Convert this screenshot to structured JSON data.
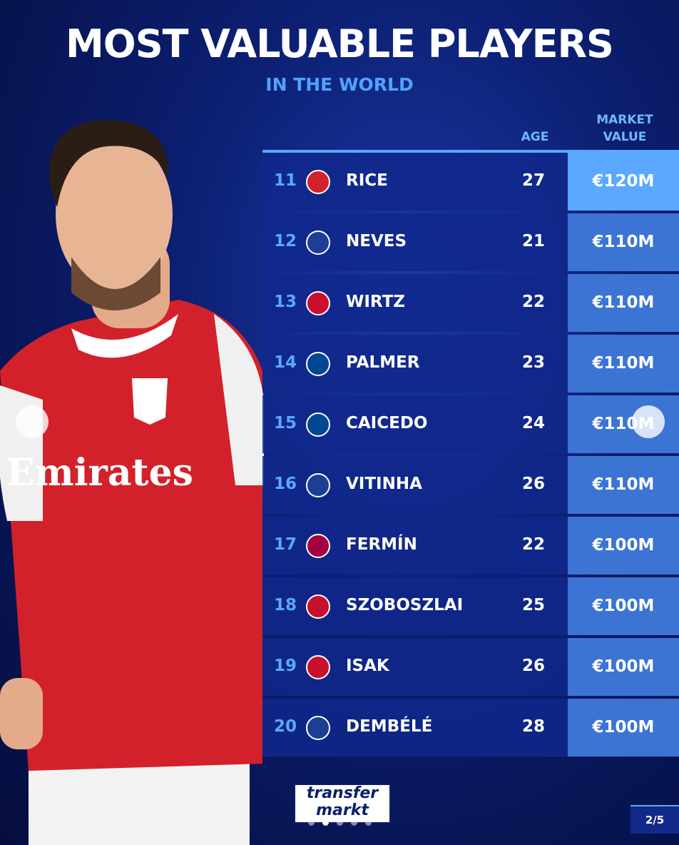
{
  "header": {
    "title": "MOST VALUABLE PLAYERS",
    "subtitle": "IN THE WORLD"
  },
  "table": {
    "columns": {
      "age": "AGE",
      "value": "MARKET VALUE"
    },
    "rows": [
      {
        "rank": 11,
        "name": "RICE",
        "age": 27,
        "value": "€120M"
      },
      {
        "rank": 12,
        "name": "NEVES",
        "age": 21,
        "value": "€110M"
      },
      {
        "rank": 13,
        "name": "WIRTZ",
        "age": 22,
        "value": "€110M"
      },
      {
        "rank": 14,
        "name": "PALMER",
        "age": 23,
        "value": "€110M"
      },
      {
        "rank": 15,
        "name": "CAICEDO",
        "age": 24,
        "value": "€110M"
      },
      {
        "rank": 16,
        "name": "VITINHA",
        "age": 26,
        "value": "€110M"
      },
      {
        "rank": 17,
        "name": "FERMÍN",
        "age": 22,
        "value": "€100M"
      },
      {
        "rank": 18,
        "name": "SZOBOSZLAI",
        "age": 25,
        "value": "€100M"
      },
      {
        "rank": 19,
        "name": "ISAK",
        "age": 26,
        "value": "€100M"
      },
      {
        "rank": 20,
        "name": "DEMBÉLÉ",
        "age": 28,
        "value": "€100M"
      }
    ]
  },
  "logo": {
    "line1": "transfer",
    "line2": "markt"
  },
  "pager": "2/5"
}
